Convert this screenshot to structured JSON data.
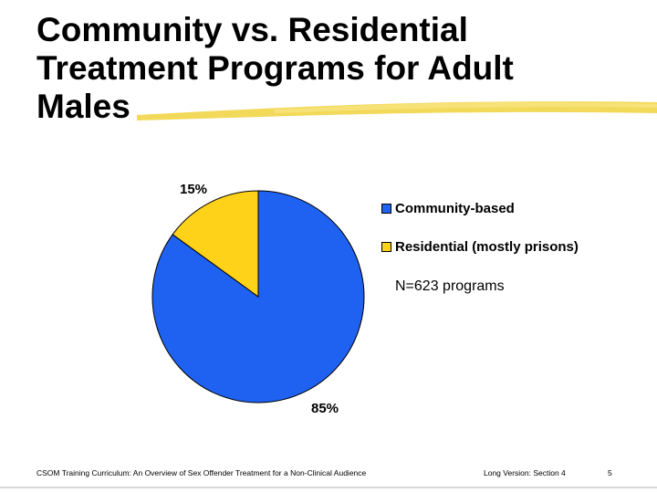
{
  "slide": {
    "title": "Community vs. Residential Treatment Programs for Adult Males",
    "note": "N=623 programs",
    "footer": {
      "left": "CSOM Training Curriculum:  An Overview of Sex Offender Treatment for a Non-Clinical Audience",
      "right": "Long Version:  Section 4",
      "page": "5"
    }
  },
  "colors": {
    "community": "#1f62f2",
    "residential": "#ffd21a",
    "swoosh": "#f0d23c"
  },
  "chart_data": {
    "type": "pie",
    "categories": [
      "Community-based",
      "Residential (mostly prisons)"
    ],
    "values": [
      85,
      15
    ],
    "data_labels": [
      "85%",
      "15%"
    ],
    "title": "",
    "legend": "right"
  }
}
